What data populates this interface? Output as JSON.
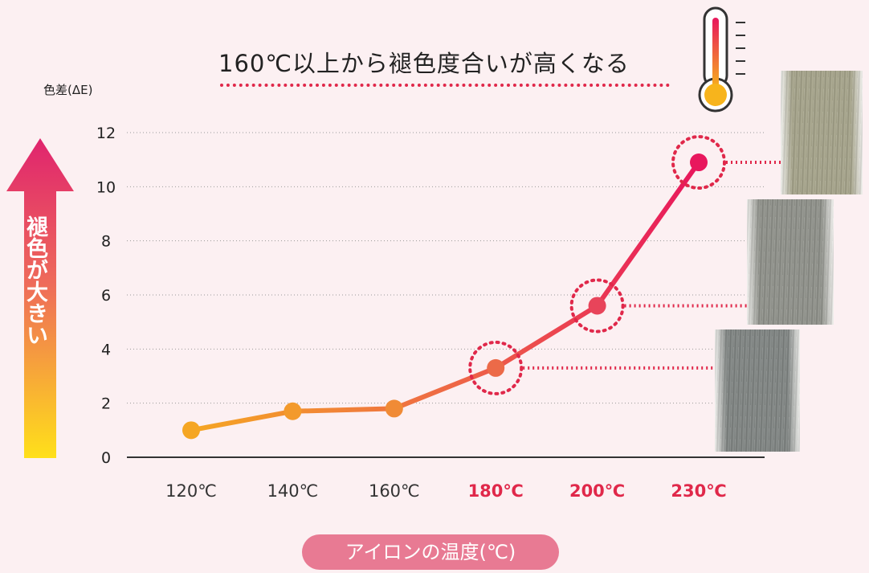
{
  "title": "160℃以上から褪色度合いが高くなる",
  "y_axis_label": "色差(ΔE)",
  "arrow_label": "褪色が大きい",
  "x_axis_title": "アイロンの温度(℃)",
  "colors": {
    "background": "#fcf0f2",
    "line_start": "#f5a623",
    "line_end": "#e8175d",
    "highlight_red": "#e0284a",
    "pill": "#e87a93"
  },
  "icons": {
    "thermometer": "thermometer-icon"
  },
  "hair_swatches": [
    {
      "name": "hair-swatch-230",
      "color": "#a6a48a"
    },
    {
      "name": "hair-swatch-200",
      "color": "#8f918a"
    },
    {
      "name": "hair-swatch-180",
      "color": "#7f8482"
    }
  ],
  "chart_data": {
    "type": "line",
    "categories": [
      "120℃",
      "140℃",
      "160℃",
      "180℃",
      "200℃",
      "230℃"
    ],
    "values": [
      1.0,
      1.7,
      1.8,
      3.3,
      5.6,
      10.9
    ],
    "highlighted": [
      false,
      false,
      false,
      true,
      true,
      true
    ],
    "ylim": [
      0,
      12
    ],
    "yticks": [
      0,
      2,
      4,
      6,
      8,
      10,
      12
    ],
    "grid": true,
    "xlabel": "アイロンの温度(℃)",
    "ylabel": "色差(ΔE)"
  }
}
